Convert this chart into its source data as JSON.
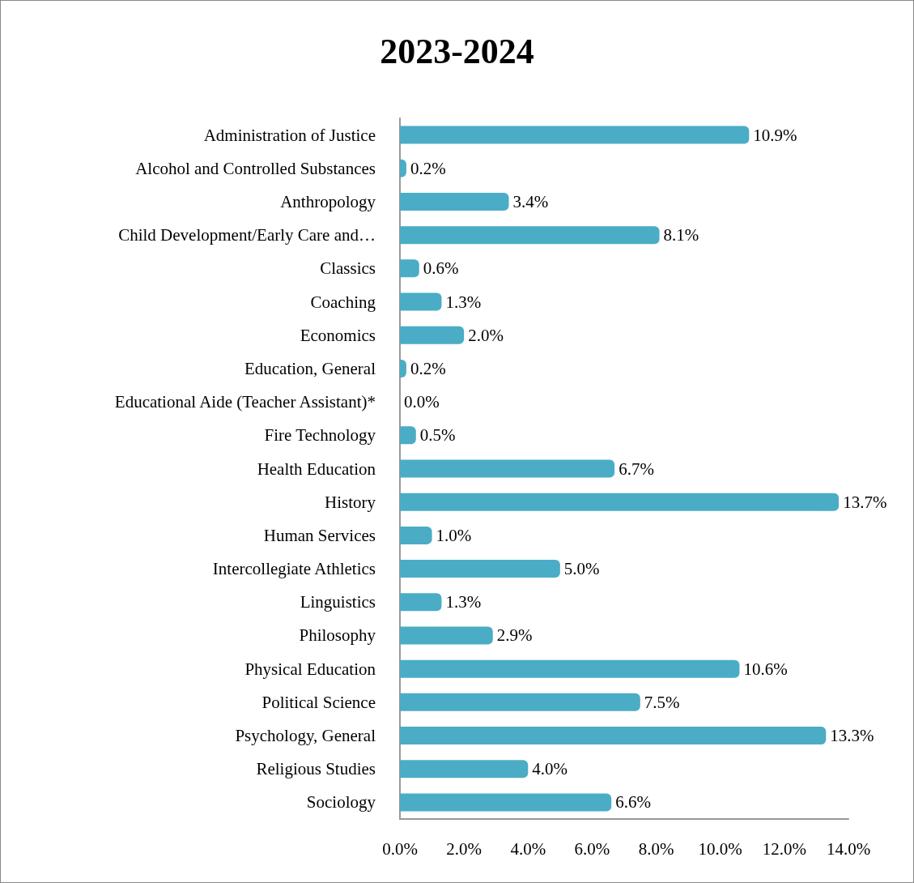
{
  "chart_data": {
    "type": "bar",
    "orientation": "horizontal",
    "title": "2023-2024",
    "categories": [
      "Administration of Justice",
      "Alcohol and Controlled Substances",
      "Anthropology",
      "Child Development/Early Care and…",
      "Classics",
      "Coaching",
      "Economics",
      "Education, General",
      "Educational Aide (Teacher Assistant)*",
      "Fire Technology",
      "Health Education",
      "History",
      "Human Services",
      "Intercollegiate Athletics",
      "Linguistics",
      "Philosophy",
      "Physical Education",
      "Political Science",
      "Psychology, General",
      "Religious Studies",
      "Sociology"
    ],
    "values": [
      10.9,
      0.2,
      3.4,
      8.1,
      0.6,
      1.3,
      2.0,
      0.2,
      0.0,
      0.5,
      6.7,
      13.7,
      1.0,
      5.0,
      1.3,
      2.9,
      10.6,
      7.5,
      13.3,
      4.0,
      6.6
    ],
    "value_labels": [
      "10.9%",
      "0.2%",
      "3.4%",
      "8.1%",
      "0.6%",
      "1.3%",
      "2.0%",
      "0.2%",
      "0.0%",
      "0.5%",
      "6.7%",
      "13.7%",
      "1.0%",
      "5.0%",
      "1.3%",
      "2.9%",
      "10.6%",
      "7.5%",
      "13.3%",
      "4.0%",
      "6.6%"
    ],
    "color": "#4bacc6",
    "xlim": [
      0,
      14
    ],
    "xticks": [
      {
        "value": 0,
        "label": "0.0%"
      },
      {
        "value": 2,
        "label": "2.0%"
      },
      {
        "value": 4,
        "label": "4.0%"
      },
      {
        "value": 6,
        "label": "6.0%"
      },
      {
        "value": 8,
        "label": "8.0%"
      },
      {
        "value": 10,
        "label": "10.0%"
      },
      {
        "value": 12,
        "label": "12.0%"
      },
      {
        "value": 14,
        "label": "14.0%"
      }
    ],
    "grid": false
  }
}
